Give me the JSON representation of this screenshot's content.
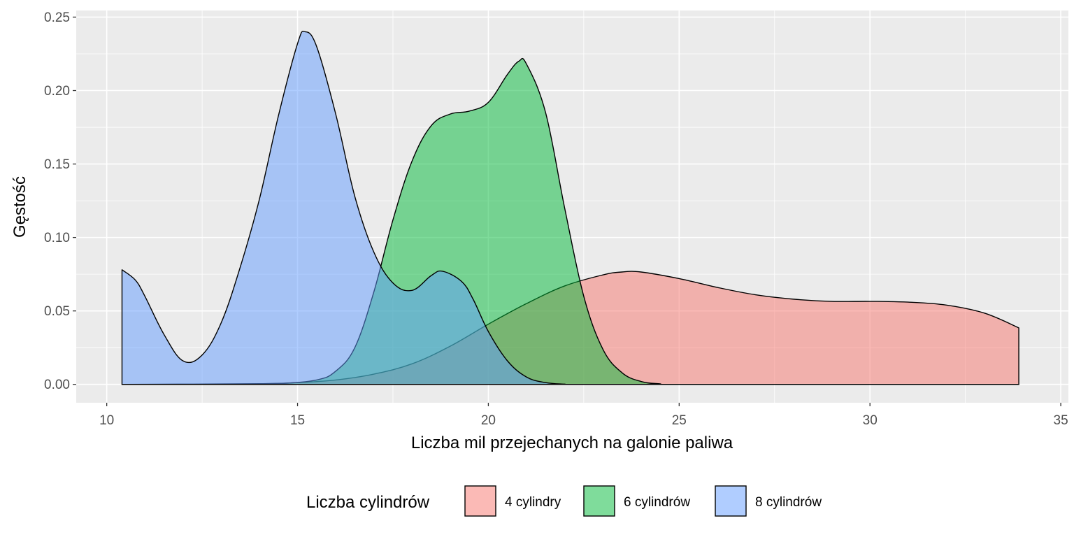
{
  "chart_data": {
    "type": "area",
    "subtype": "density",
    "xlabel": "Liczba mil przejechanych na galonie paliwa",
    "ylabel": "Gęstość",
    "xlim": [
      9.2,
      35.2
    ],
    "ylim": [
      -0.0125,
      0.2545
    ],
    "x_ticks": [
      10,
      15,
      20,
      25,
      30,
      35
    ],
    "x_tick_labels": [
      "10",
      "15",
      "20",
      "25",
      "30",
      "35"
    ],
    "y_ticks": [
      0,
      0.05,
      0.1,
      0.15,
      0.2,
      0.25
    ],
    "y_tick_labels": [
      "0.00",
      "0.05",
      "0.10",
      "0.15",
      "0.20",
      "0.25"
    ],
    "grid": true,
    "legend_position": "bottom",
    "legend_title": "Liczba cylindrów",
    "series": [
      {
        "name": "4 cylindry",
        "color": "#F8766D",
        "points": [
          [
            10.4,
            0
          ],
          [
            14,
            0.0005
          ],
          [
            15,
            0.0012
          ],
          [
            16,
            0.003
          ],
          [
            17,
            0.007
          ],
          [
            18,
            0.014
          ],
          [
            19,
            0.026
          ],
          [
            20,
            0.041
          ],
          [
            21,
            0.055
          ],
          [
            22,
            0.067
          ],
          [
            23,
            0.0745
          ],
          [
            23.5,
            0.0765
          ],
          [
            24,
            0.0765
          ],
          [
            25,
            0.072
          ],
          [
            26,
            0.066
          ],
          [
            27,
            0.061
          ],
          [
            28,
            0.058
          ],
          [
            29,
            0.0565
          ],
          [
            30,
            0.0565
          ],
          [
            31,
            0.056
          ],
          [
            32,
            0.054
          ],
          [
            33,
            0.0485
          ],
          [
            33.9,
            0.0385
          ]
        ]
      },
      {
        "name": "6 cylindrów",
        "color": "#00BA38",
        "points": [
          [
            10.4,
            0
          ],
          [
            13.5,
            0
          ],
          [
            14.5,
            0.0005
          ],
          [
            15.5,
            0.003
          ],
          [
            16,
            0.009
          ],
          [
            16.5,
            0.025
          ],
          [
            17,
            0.063
          ],
          [
            17.5,
            0.112
          ],
          [
            18,
            0.152
          ],
          [
            18.5,
            0.176
          ],
          [
            19,
            0.184
          ],
          [
            19.5,
            0.186
          ],
          [
            20,
            0.192
          ],
          [
            20.5,
            0.211
          ],
          [
            20.8,
            0.22
          ],
          [
            21,
            0.218
          ],
          [
            21.5,
            0.185
          ],
          [
            22,
            0.12
          ],
          [
            22.5,
            0.06
          ],
          [
            23,
            0.024
          ],
          [
            23.5,
            0.008
          ],
          [
            24,
            0.002
          ],
          [
            24.5,
            0.0004
          ],
          [
            25,
            0
          ],
          [
            33.9,
            0
          ]
        ]
      },
      {
        "name": "8 cylindrów",
        "color": "#619CFF",
        "points": [
          [
            10.4,
            0.078
          ],
          [
            10.75,
            0.071
          ],
          [
            11,
            0.06
          ],
          [
            11.5,
            0.034
          ],
          [
            12,
            0.016
          ],
          [
            12.5,
            0.02
          ],
          [
            13,
            0.042
          ],
          [
            13.5,
            0.08
          ],
          [
            14,
            0.126
          ],
          [
            14.5,
            0.183
          ],
          [
            15,
            0.232
          ],
          [
            15.2,
            0.24
          ],
          [
            15.5,
            0.23
          ],
          [
            16,
            0.184
          ],
          [
            16.5,
            0.128
          ],
          [
            17,
            0.09
          ],
          [
            17.5,
            0.069
          ],
          [
            18,
            0.064
          ],
          [
            18.5,
            0.074
          ],
          [
            18.8,
            0.077
          ],
          [
            19.3,
            0.07
          ],
          [
            19.6,
            0.058
          ],
          [
            20,
            0.036
          ],
          [
            20.5,
            0.016
          ],
          [
            21,
            0.005
          ],
          [
            21.5,
            0.0012
          ],
          [
            22,
            0.0002
          ],
          [
            22.5,
            0
          ],
          [
            33.9,
            0
          ]
        ]
      }
    ]
  }
}
